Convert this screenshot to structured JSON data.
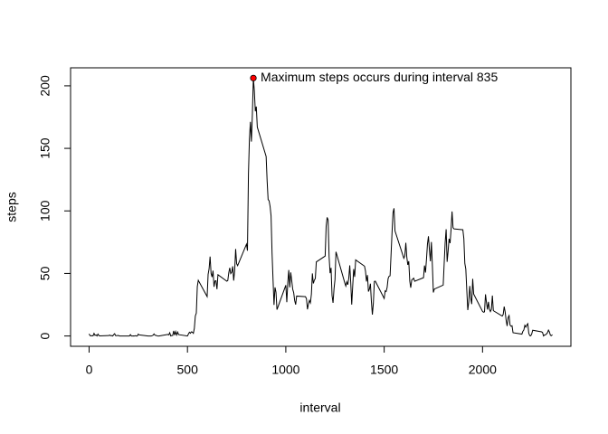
{
  "chart_data": {
    "type": "line",
    "x_label": "interval",
    "y_label": "steps",
    "annotation": "Maximum steps occurs during interval 835",
    "color": "#000000",
    "highlight_color": "#ff0000",
    "x": [
      0,
      5,
      10,
      15,
      20,
      25,
      30,
      35,
      40,
      45,
      50,
      55,
      100,
      105,
      110,
      115,
      120,
      125,
      130,
      135,
      140,
      145,
      150,
      155,
      200,
      205,
      210,
      215,
      220,
      225,
      230,
      235,
      240,
      245,
      250,
      255,
      300,
      305,
      310,
      315,
      320,
      325,
      330,
      335,
      340,
      345,
      350,
      355,
      400,
      405,
      410,
      415,
      420,
      425,
      430,
      435,
      440,
      445,
      450,
      455,
      500,
      505,
      510,
      515,
      520,
      525,
      530,
      535,
      540,
      545,
      550,
      555,
      600,
      605,
      610,
      615,
      620,
      625,
      630,
      635,
      640,
      645,
      650,
      655,
      700,
      705,
      710,
      715,
      720,
      725,
      730,
      735,
      740,
      745,
      750,
      755,
      800,
      805,
      810,
      815,
      820,
      825,
      830,
      835,
      840,
      845,
      850,
      855,
      900,
      905,
      910,
      915,
      920,
      925,
      930,
      935,
      940,
      945,
      950,
      955,
      1000,
      1005,
      1010,
      1015,
      1020,
      1025,
      1030,
      1035,
      1040,
      1045,
      1050,
      1055,
      1100,
      1105,
      1110,
      1115,
      1120,
      1125,
      1130,
      1135,
      1140,
      1145,
      1150,
      1155,
      1200,
      1205,
      1210,
      1215,
      1220,
      1225,
      1230,
      1235,
      1240,
      1245,
      1250,
      1255,
      1300,
      1305,
      1310,
      1315,
      1320,
      1325,
      1330,
      1335,
      1340,
      1345,
      1350,
      1355,
      1400,
      1405,
      1410,
      1415,
      1420,
      1425,
      1430,
      1435,
      1440,
      1445,
      1450,
      1455,
      1500,
      1505,
      1510,
      1515,
      1520,
      1525,
      1530,
      1535,
      1540,
      1545,
      1550,
      1555,
      1600,
      1605,
      1610,
      1615,
      1620,
      1625,
      1630,
      1635,
      1640,
      1645,
      1650,
      1655,
      1700,
      1705,
      1710,
      1715,
      1720,
      1725,
      1730,
      1735,
      1740,
      1745,
      1750,
      1755,
      1800,
      1805,
      1810,
      1815,
      1820,
      1825,
      1830,
      1835,
      1840,
      1845,
      1850,
      1855,
      1900,
      1905,
      1910,
      1915,
      1920,
      1925,
      1930,
      1935,
      1940,
      1945,
      1950,
      1955,
      2000,
      2005,
      2010,
      2015,
      2020,
      2025,
      2030,
      2035,
      2040,
      2045,
      2050,
      2055,
      2100,
      2105,
      2110,
      2115,
      2120,
      2125,
      2130,
      2135,
      2140,
      2145,
      2150,
      2155,
      2200,
      2205,
      2210,
      2215,
      2220,
      2225,
      2230,
      2235,
      2240,
      2245,
      2250,
      2255,
      2300,
      2305,
      2310,
      2315,
      2320,
      2325,
      2330,
      2335,
      2340,
      2345,
      2350,
      2355
    ],
    "values": [
      1.7,
      0.3,
      0.1,
      0.2,
      0.1,
      2.1,
      0.5,
      0.9,
      0,
      1.5,
      0.3,
      0.1,
      0.3,
      0.7,
      0.2,
      0.3,
      0,
      1.1,
      1.8,
      0.2,
      0.2,
      0.4,
      0.3,
      0,
      0,
      0,
      1.1,
      0,
      0,
      0.1,
      0,
      0.2,
      0,
      0,
      1.5,
      0.9,
      0,
      0,
      0,
      0,
      0.2,
      0.6,
      1.6,
      0.6,
      0.5,
      0.1,
      0,
      0,
      1.2,
      0.9,
      2.6,
      0,
      0.3,
      0.4,
      4.1,
      0.7,
      3.5,
      0.8,
      3.1,
      1.1,
      0,
      1.6,
      3,
      2.2,
      3.3,
      3,
      2.1,
      6.1,
      16,
      18.3,
      39.5,
      44.5,
      31.5,
      49.3,
      53.8,
      63.5,
      50,
      47.1,
      52.2,
      39.3,
      44,
      44.2,
      37.4,
      49,
      43.8,
      44.4,
      50.5,
      54.5,
      49.9,
      50.98,
      55.7,
      44.3,
      52.3,
      69.5,
      57.8,
      56.2,
      73.4,
      68.2,
      129.4,
      157.5,
      171.2,
      155.4,
      177.3,
      206.2,
      195.9,
      179.6,
      183.4,
      167,
      143.5,
      124,
      109.1,
      108.1,
      103.7,
      95.97,
      66.2,
      45.2,
      24.8,
      38.8,
      35,
      21.1,
      40.6,
      27,
      42.4,
      52.7,
      38.9,
      50.8,
      44.3,
      37.4,
      34.7,
      28.3,
      25.1,
      31.9,
      31.4,
      29.7,
      21.3,
      25.5,
      28.4,
      26.5,
      33.4,
      49.98,
      42,
      44.6,
      46,
      59.2,
      63.9,
      87.7,
      94.8,
      92.8,
      63.4,
      50.2,
      54.5,
      32.4,
      26.5,
      37.7,
      45.1,
      67.3,
      42.3,
      39.9,
      43.3,
      40.98,
      46.2,
      56.4,
      42.8,
      25.1,
      39.97,
      53.5,
      47.3,
      60.8,
      55.8,
      51.96,
      43.6,
      48.7,
      35.5,
      37.5,
      41.8,
      27.5,
      17.1,
      26.1,
      43.6,
      43.8,
      30,
      36.1,
      35.5,
      38.8,
      45.96,
      47.8,
      48.1,
      65.3,
      82.9,
      98.7,
      102.1,
      83.96,
      62.1,
      64.1,
      74.5,
      63.2,
      56.9,
      59.8,
      43.9,
      38.6,
      44.7,
      45.5,
      46.2,
      43.7,
      46.6,
      56.3,
      50.7,
      61.2,
      73.4,
      79.7,
      68.9,
      59.7,
      75.1,
      56.5,
      34.8,
      37.5,
      40.7,
      58,
      74.7,
      85.3,
      59.3,
      67.8,
      77.7,
      74.2,
      85.3,
      99.5,
      86.6,
      85.6,
      84.9,
      77.8,
      58,
      53.4,
      36.3,
      20.7,
      27.4,
      40,
      30.2,
      25.5,
      45.7,
      33.5,
      19.6,
      19,
      19.3,
      33.3,
      26.8,
      21.2,
      27.3,
      21.3,
      19.5,
      21.3,
      32.3,
      20.2,
      15.9,
      17.2,
      23.5,
      19.2,
      12.5,
      8,
      14.7,
      16.3,
      8.7,
      7.8,
      8.1,
      2.6,
      1.5,
      3.7,
      4.8,
      8.5,
      7.1,
      8.7,
      9.8,
      2.2,
      0.3,
      0.1,
      1.6,
      4.6,
      3.3,
      2.8,
      0,
      0.8,
      0.96,
      1.6,
      2.6,
      4.7,
      3.3,
      0.6,
      0.2,
      1.1
    ],
    "xlim": [
      -94.2,
      2449.2
    ],
    "ylim": [
      -8.25,
      214.4
    ],
    "xticks": [
      0,
      500,
      1000,
      1500,
      2000
    ],
    "yticks": [
      0,
      50,
      100,
      150,
      200
    ]
  }
}
